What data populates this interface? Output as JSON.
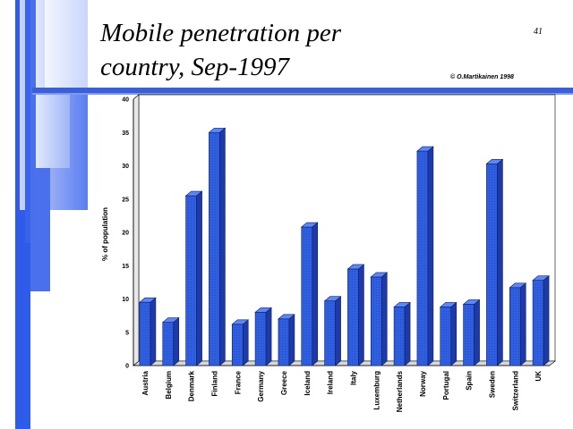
{
  "slide": {
    "title": "Mobile penetration per\ncountry, Sep-1997",
    "page_number": "41",
    "copyright": "© O.Martikainen 1998",
    "accent_color": "#3355e0"
  },
  "chart_data": {
    "type": "bar",
    "title": "",
    "xlabel": "",
    "ylabel": "% of population",
    "ylim": [
      0,
      40
    ],
    "yticks": [
      0,
      5,
      10,
      15,
      20,
      25,
      30,
      35,
      40
    ],
    "grid": true,
    "bar_color": "#2f5fe0",
    "categories": [
      "Austria",
      "Belgium",
      "Denmark",
      "Finland",
      "France",
      "Germany",
      "Greece",
      "Iceland",
      "Ireland",
      "Italy",
      "Luxemburg",
      "Netherlands",
      "Norway",
      "Portugal",
      "Spain",
      "Sweden",
      "Switzerland",
      "UK"
    ],
    "values": [
      9.5,
      6.5,
      25.5,
      35,
      6.2,
      8,
      7,
      20.8,
      9.7,
      14.5,
      13.3,
      8.8,
      32.2,
      8.8,
      9.2,
      30.3,
      11.7,
      12.8
    ]
  }
}
